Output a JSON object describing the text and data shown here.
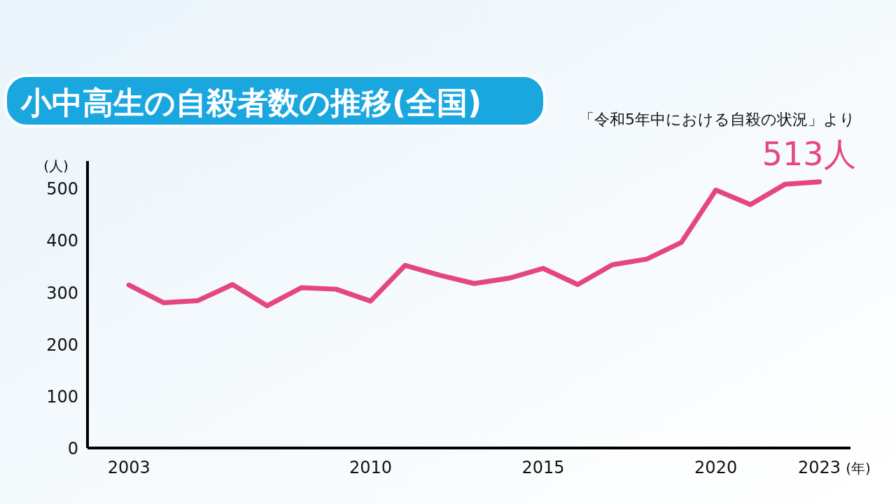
{
  "chart_data": {
    "type": "line",
    "title": "小中高生の自殺者数の推移(全国)",
    "xlabel": "(年)",
    "ylabel": "(人)",
    "annotations": [
      "「令和5年中における自殺の状況」より",
      {
        "text": "513人",
        "x": 2023,
        "y": 513
      }
    ],
    "x": [
      2003,
      2004,
      2005,
      2006,
      2007,
      2008,
      2009,
      2010,
      2011,
      2012,
      2013,
      2014,
      2015,
      2016,
      2017,
      2018,
      2019,
      2020,
      2021,
      2022,
      2023
    ],
    "series": [
      {
        "color": "#e6467f",
        "values": [
          314,
          280,
          284,
          315,
          274,
          309,
          306,
          283,
          352,
          333,
          317,
          327,
          346,
          315,
          353,
          364,
          396,
          497,
          469,
          508,
          513
        ]
      }
    ],
    "xlim": [
      2001.8,
      2023.9
    ],
    "ylim": [
      0,
      553
    ],
    "xticks": [
      2003,
      2010,
      2015,
      2020,
      2023
    ],
    "yticks": [
      0,
      100,
      200,
      300,
      400,
      500
    ]
  }
}
